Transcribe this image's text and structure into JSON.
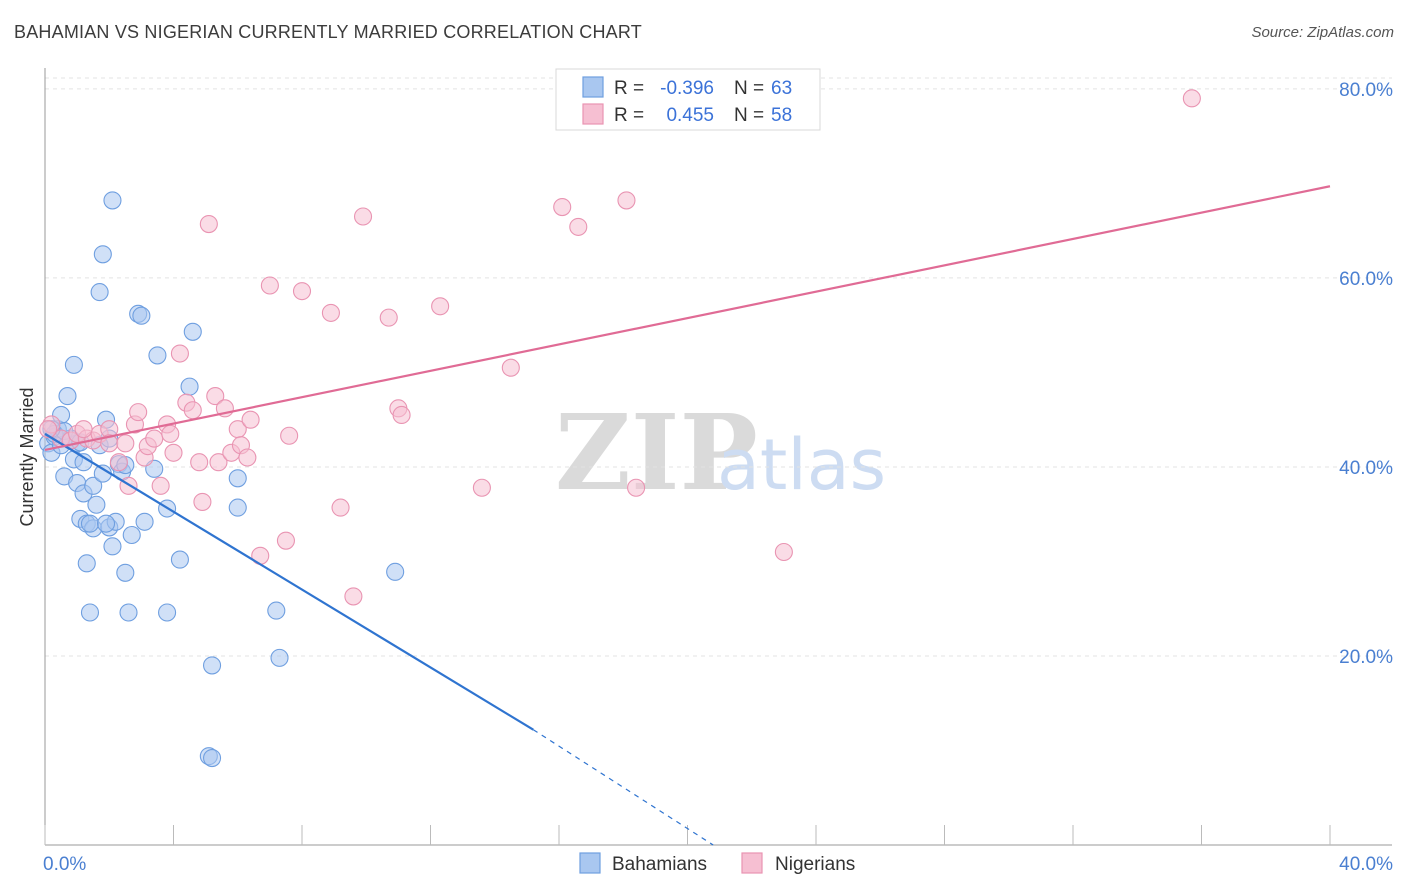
{
  "title": "BAHAMIAN VS NIGERIAN CURRENTLY MARRIED CORRELATION CHART",
  "source": "Source: ZipAtlas.com",
  "watermark": {
    "zip": "ZIP",
    "atlas": "atlas"
  },
  "chart_data": {
    "type": "scatter",
    "title": "BAHAMIAN VS NIGERIAN CURRENTLY MARRIED CORRELATION CHART",
    "xlabel": "",
    "ylabel": "Currently Married",
    "xlim": [
      0,
      40
    ],
    "ylim": [
      0,
      82
    ],
    "x_tick_labels": [
      {
        "value": 0,
        "label": "0.0%"
      },
      {
        "value": 40,
        "label": "40.0%"
      }
    ],
    "y_tick_labels": [
      {
        "value": 20,
        "label": "20.0%"
      },
      {
        "value": 40,
        "label": "40.0%"
      },
      {
        "value": 60,
        "label": "60.0%"
      },
      {
        "value": 80,
        "label": "80.0%"
      }
    ],
    "legend": [
      {
        "series": "Bahamians",
        "r_label": "R = ",
        "r_value": "-0.396",
        "n_label": "N = ",
        "n_value": "63"
      },
      {
        "series": "Nigerians",
        "r_label": "R = ",
        "r_value": "0.455",
        "n_label": "N = ",
        "n_value": "58"
      }
    ],
    "series": [
      {
        "name": "Bahamians",
        "color": "#6f9fe0",
        "fill": "#a9c7f0",
        "line_color": "#2f74d0",
        "trend": {
          "x1": 0,
          "y1": 43.5,
          "x2": 15.2,
          "y2": 12.2,
          "dash_x2": 20.8,
          "dash_y2": 0
        },
        "points": [
          [
            0.1,
            42.5
          ],
          [
            0.2,
            41.5
          ],
          [
            0.3,
            43.2
          ],
          [
            0.4,
            44.0
          ],
          [
            0.5,
            45.5
          ],
          [
            0.5,
            42.3
          ],
          [
            0.6,
            39.0
          ],
          [
            0.7,
            47.5
          ],
          [
            0.8,
            43.0
          ],
          [
            0.9,
            40.8
          ],
          [
            0.9,
            50.8
          ],
          [
            1.0,
            42.5
          ],
          [
            1.0,
            38.3
          ],
          [
            1.1,
            34.5
          ],
          [
            1.2,
            40.5
          ],
          [
            1.2,
            37.2
          ],
          [
            1.3,
            34.0
          ],
          [
            1.3,
            29.8
          ],
          [
            1.4,
            24.6
          ],
          [
            1.5,
            33.5
          ],
          [
            1.5,
            38.0
          ],
          [
            1.6,
            36.0
          ],
          [
            1.7,
            42.3
          ],
          [
            1.7,
            58.5
          ],
          [
            1.8,
            39.3
          ],
          [
            1.8,
            62.5
          ],
          [
            1.9,
            45.0
          ],
          [
            2.0,
            33.6
          ],
          [
            2.0,
            43.0
          ],
          [
            2.1,
            68.2
          ],
          [
            2.1,
            31.6
          ],
          [
            2.2,
            34.2
          ],
          [
            2.3,
            40.3
          ],
          [
            2.4,
            39.5
          ],
          [
            2.5,
            28.8
          ],
          [
            2.6,
            24.6
          ],
          [
            2.7,
            32.8
          ],
          [
            2.9,
            56.2
          ],
          [
            3.0,
            56.0
          ],
          [
            3.1,
            34.2
          ],
          [
            3.4,
            39.8
          ],
          [
            3.5,
            51.8
          ],
          [
            3.8,
            24.6
          ],
          [
            3.8,
            35.6
          ],
          [
            4.2,
            30.2
          ],
          [
            4.5,
            48.5
          ],
          [
            4.6,
            54.3
          ],
          [
            5.1,
            9.4
          ],
          [
            5.2,
            19.0
          ],
          [
            5.2,
            9.2
          ],
          [
            6.0,
            38.8
          ],
          [
            6.0,
            35.7
          ],
          [
            7.2,
            24.8
          ],
          [
            7.3,
            19.8
          ],
          [
            10.9,
            28.9
          ],
          [
            0.3,
            43.5
          ],
          [
            0.6,
            43.8
          ],
          [
            1.4,
            34.0
          ],
          [
            0.8,
            42.8
          ],
          [
            1.1,
            42.6
          ],
          [
            1.9,
            34.0
          ],
          [
            2.5,
            40.2
          ],
          [
            0.2,
            44.0
          ]
        ]
      },
      {
        "name": "Nigerians",
        "color": "#e994b2",
        "fill": "#f6bfd2",
        "line_color": "#e06b95",
        "trend": {
          "x1": 0,
          "y1": 41.8,
          "x2": 40,
          "y2": 69.7
        },
        "points": [
          [
            0.2,
            44.5
          ],
          [
            0.5,
            43.0
          ],
          [
            0.8,
            42.8
          ],
          [
            1.0,
            43.5
          ],
          [
            1.3,
            43.0
          ],
          [
            1.5,
            42.8
          ],
          [
            1.7,
            43.5
          ],
          [
            2.0,
            44.0
          ],
          [
            2.0,
            42.5
          ],
          [
            2.3,
            40.5
          ],
          [
            2.5,
            42.5
          ],
          [
            2.6,
            38.0
          ],
          [
            2.8,
            44.5
          ],
          [
            2.9,
            45.8
          ],
          [
            3.1,
            41.0
          ],
          [
            3.2,
            42.2
          ],
          [
            3.4,
            43.0
          ],
          [
            3.6,
            38.0
          ],
          [
            3.8,
            44.5
          ],
          [
            3.9,
            43.5
          ],
          [
            4.0,
            41.5
          ],
          [
            4.2,
            52.0
          ],
          [
            4.4,
            46.8
          ],
          [
            4.6,
            46.0
          ],
          [
            4.8,
            40.5
          ],
          [
            4.9,
            36.3
          ],
          [
            5.1,
            65.7
          ],
          [
            5.3,
            47.5
          ],
          [
            5.4,
            40.5
          ],
          [
            5.6,
            46.2
          ],
          [
            5.8,
            41.5
          ],
          [
            6.0,
            44.0
          ],
          [
            6.1,
            42.3
          ],
          [
            6.3,
            41.0
          ],
          [
            6.4,
            45.0
          ],
          [
            6.7,
            30.6
          ],
          [
            7.0,
            59.2
          ],
          [
            7.5,
            32.2
          ],
          [
            7.6,
            43.3
          ],
          [
            8.0,
            58.6
          ],
          [
            8.9,
            56.3
          ],
          [
            9.2,
            35.7
          ],
          [
            9.6,
            26.3
          ],
          [
            9.9,
            66.5
          ],
          [
            10.7,
            55.8
          ],
          [
            11.0,
            46.2
          ],
          [
            11.1,
            45.5
          ],
          [
            12.3,
            57.0
          ],
          [
            13.6,
            37.8
          ],
          [
            14.5,
            50.5
          ],
          [
            16.1,
            67.5
          ],
          [
            16.6,
            65.4
          ],
          [
            18.1,
            68.2
          ],
          [
            18.4,
            37.8
          ],
          [
            23.0,
            31.0
          ],
          [
            35.7,
            79.0
          ],
          [
            0.1,
            44.0
          ],
          [
            1.2,
            44.0
          ]
        ]
      }
    ]
  }
}
